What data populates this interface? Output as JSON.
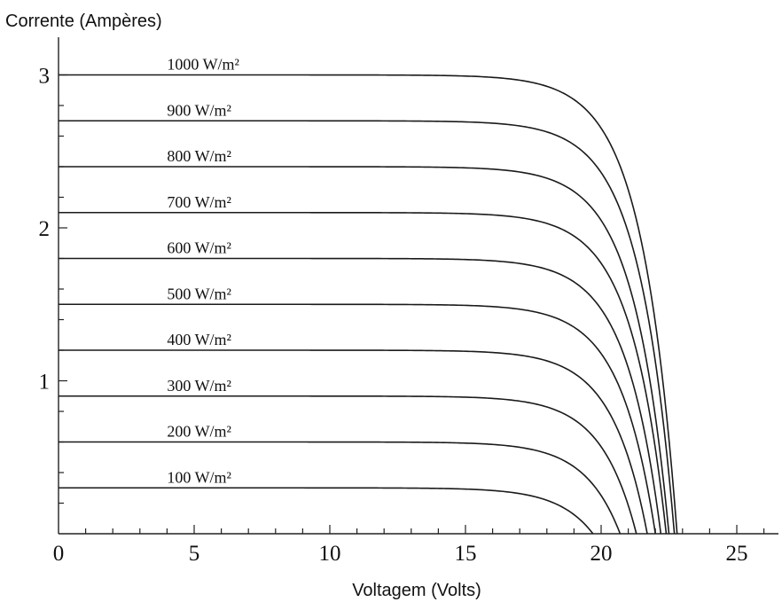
{
  "chart_data": {
    "type": "line",
    "title": "",
    "ylabel": "Corrente (Ampères)",
    "xlabel": "Voltagem (Volts)",
    "xlim": [
      0,
      27
    ],
    "ylim": [
      0,
      3.1
    ],
    "x_ticks": [
      0,
      5,
      10,
      15,
      20,
      25
    ],
    "y_ticks": [
      1,
      2,
      3
    ],
    "x_tick_labels": [
      "0",
      "5",
      "10",
      "15",
      "20",
      "25"
    ],
    "y_tick_labels": [
      "1",
      "2",
      "3"
    ],
    "grid": false,
    "legend": "none",
    "series": [
      {
        "name": "1000 W/m²",
        "isc": 3.0,
        "voc": 22.8
      },
      {
        "name": "900 W/m²",
        "isc": 2.7,
        "voc": 22.7
      },
      {
        "name": "800 W/m²",
        "isc": 2.4,
        "voc": 22.5
      },
      {
        "name": "700 W/m²",
        "isc": 2.1,
        "voc": 22.4
      },
      {
        "name": "600 W/m²",
        "isc": 1.8,
        "voc": 22.2
      },
      {
        "name": "500 W/m²",
        "isc": 1.5,
        "voc": 22.0
      },
      {
        "name": "400 W/m²",
        "isc": 1.2,
        "voc": 21.7
      },
      {
        "name": "300 W/m²",
        "isc": 0.9,
        "voc": 21.3
      },
      {
        "name": "200 W/m²",
        "isc": 0.6,
        "voc": 20.7
      },
      {
        "name": "100 W/m²",
        "isc": 0.3,
        "voc": 19.7
      }
    ],
    "curve_model": "I(V) = Isc * (1 - exp((V - Voc)/Vt)) / (1 - exp(-Voc/Vt))",
    "thermal_voltage_vt": 1.3
  }
}
